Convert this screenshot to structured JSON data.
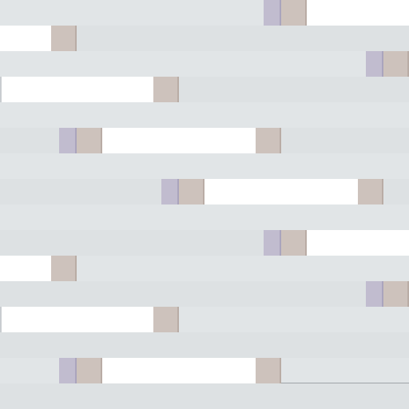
{
  "palette": {
    "background": "#dfe3e5",
    "white_block": "#ffffff",
    "beige_block": "#cdc2bc",
    "violet_block": "#c1bccf"
  },
  "pattern": {
    "rows": 16,
    "block_types": [
      "white",
      "beige",
      "violet"
    ]
  }
}
